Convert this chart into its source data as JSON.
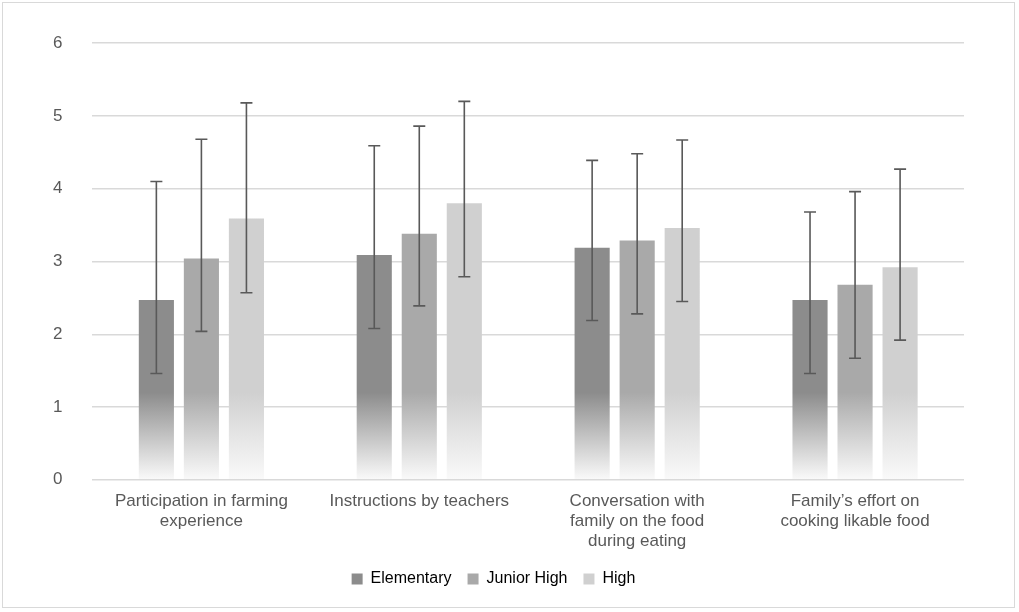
{
  "chart_data": {
    "type": "bar",
    "categories": [
      "Participation in farming experience",
      "Instructions by teachers",
      "Conversation with family on the food during eating",
      "Family’s effort on cooking likable food"
    ],
    "series": [
      {
        "name": "Elementary",
        "color": "#8c8c8c",
        "values": [
          2.47,
          3.09,
          3.19,
          2.47
        ],
        "errors": [
          [
            1.46,
            4.1
          ],
          [
            2.08,
            4.59
          ],
          [
            2.19,
            4.39
          ],
          [
            1.46,
            3.68
          ]
        ]
      },
      {
        "name": "Junior High",
        "color": "#a9a9a9",
        "values": [
          3.04,
          3.38,
          3.29,
          2.68
        ],
        "errors": [
          [
            2.04,
            4.68
          ],
          [
            2.39,
            4.86
          ],
          [
            2.28,
            4.48
          ],
          [
            1.67,
            3.96
          ]
        ]
      },
      {
        "name": "High",
        "color": "#d0d0d0",
        "values": [
          3.59,
          3.8,
          3.46,
          2.92
        ],
        "errors": [
          [
            2.57,
            5.18
          ],
          [
            2.79,
            5.2
          ],
          [
            2.45,
            4.67
          ],
          [
            1.92,
            4.27
          ]
        ]
      }
    ],
    "ylim": [
      0,
      6
    ],
    "yticks": [
      0,
      1,
      2,
      3,
      4,
      5,
      6
    ],
    "grid": "y",
    "legend": "bottom"
  }
}
